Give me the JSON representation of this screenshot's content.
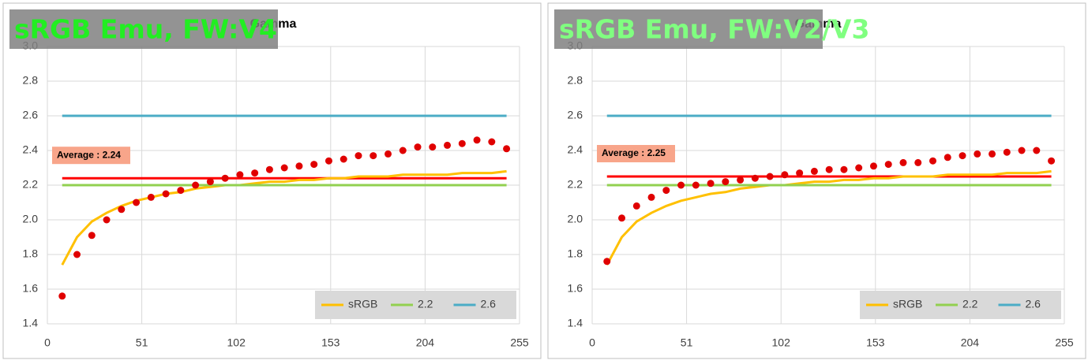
{
  "chart_data": [
    {
      "type": "line",
      "title": "Gamma",
      "overlay": "sRGB Emu, FW:V4",
      "overlay_color": "#22ee22",
      "xlim": [
        0,
        255
      ],
      "xticks": [
        0,
        51,
        102,
        153,
        204,
        255
      ],
      "ylim": [
        1.4,
        3
      ],
      "yticks": [
        1.4,
        1.6,
        1.8,
        {
          "value": 2,
          "label": "2.0"
        },
        2.2,
        2.4,
        2.6,
        2.8,
        {
          "value": 3,
          "label": "3.0"
        }
      ],
      "grid": true,
      "legend": "lower right",
      "x": [
        8,
        16,
        24,
        32,
        40,
        48,
        56,
        64,
        72,
        80,
        88,
        96,
        104,
        112,
        120,
        128,
        136,
        144,
        152,
        160,
        168,
        176,
        184,
        192,
        200,
        208,
        216,
        224,
        232,
        240,
        248
      ],
      "series": [
        {
          "name": "sRGB",
          "color": "#ffc000",
          "kind": "line",
          "values": [
            1.74,
            1.9,
            1.99,
            2.04,
            2.08,
            2.11,
            2.13,
            2.15,
            2.16,
            2.18,
            2.19,
            2.2,
            2.2,
            2.21,
            2.22,
            2.22,
            2.23,
            2.23,
            2.24,
            2.24,
            2.25,
            2.25,
            2.25,
            2.26,
            2.26,
            2.26,
            2.26,
            2.27,
            2.27,
            2.27,
            2.28
          ]
        },
        {
          "name": "2.2",
          "color": "#92d050",
          "kind": "line",
          "x": [
            8,
            248
          ],
          "values": [
            2.2,
            2.2
          ]
        },
        {
          "name": "2.6",
          "color": "#4bacc6",
          "kind": "line",
          "x": [
            8,
            248
          ],
          "values": [
            2.6,
            2.6
          ]
        },
        {
          "color": "#e00000",
          "kind": "scatter",
          "values": [
            1.56,
            1.8,
            1.91,
            2.0,
            2.06,
            2.1,
            2.13,
            2.15,
            2.17,
            2.2,
            2.22,
            2.24,
            2.26,
            2.27,
            2.29,
            2.3,
            2.31,
            2.32,
            2.34,
            2.35,
            2.37,
            2.37,
            2.38,
            2.4,
            2.42,
            2.42,
            2.43,
            2.44,
            2.46,
            2.45,
            2.41
          ]
        }
      ],
      "average": {
        "value": 2.24,
        "label": "Average : 2.24",
        "color": "#ff0000",
        "box_color": "#f8a58a"
      }
    },
    {
      "type": "line",
      "title": "Gamma",
      "overlay": "sRGB Emu, FW:V2/V3",
      "overlay_color": "#80ff80",
      "xlim": [
        0,
        255
      ],
      "xticks": [
        0,
        51,
        102,
        153,
        204,
        255
      ],
      "ylim": [
        1.4,
        3
      ],
      "yticks": [
        1.4,
        1.6,
        1.8,
        {
          "value": 2,
          "label": "2.0"
        },
        2.2,
        2.4,
        2.6,
        2.8,
        {
          "value": 3,
          "label": "3.0"
        }
      ],
      "grid": true,
      "legend": "lower right",
      "x": [
        8,
        16,
        24,
        32,
        40,
        48,
        56,
        64,
        72,
        80,
        88,
        96,
        104,
        112,
        120,
        128,
        136,
        144,
        152,
        160,
        168,
        176,
        184,
        192,
        200,
        208,
        216,
        224,
        232,
        240,
        248
      ],
      "series": [
        {
          "name": "sRGB",
          "color": "#ffc000",
          "kind": "line",
          "values": [
            1.74,
            1.9,
            1.99,
            2.04,
            2.08,
            2.11,
            2.13,
            2.15,
            2.16,
            2.18,
            2.19,
            2.2,
            2.2,
            2.21,
            2.22,
            2.22,
            2.23,
            2.23,
            2.24,
            2.24,
            2.25,
            2.25,
            2.25,
            2.26,
            2.26,
            2.26,
            2.26,
            2.27,
            2.27,
            2.27,
            2.28
          ]
        },
        {
          "name": "2.2",
          "color": "#92d050",
          "kind": "line",
          "x": [
            8,
            248
          ],
          "values": [
            2.2,
            2.2
          ]
        },
        {
          "name": "2.6",
          "color": "#4bacc6",
          "kind": "line",
          "x": [
            8,
            248
          ],
          "values": [
            2.6,
            2.6
          ]
        },
        {
          "color": "#e00000",
          "kind": "scatter",
          "values": [
            1.76,
            2.01,
            2.08,
            2.13,
            2.17,
            2.2,
            2.2,
            2.21,
            2.22,
            2.23,
            2.24,
            2.25,
            2.26,
            2.27,
            2.28,
            2.29,
            2.29,
            2.3,
            2.31,
            2.32,
            2.33,
            2.33,
            2.34,
            2.36,
            2.37,
            2.38,
            2.38,
            2.39,
            2.4,
            2.4,
            2.34
          ]
        }
      ],
      "average": {
        "value": 2.25,
        "label": "Average : 2.25",
        "color": "#ff0000",
        "box_color": "#f8a58a"
      }
    }
  ]
}
